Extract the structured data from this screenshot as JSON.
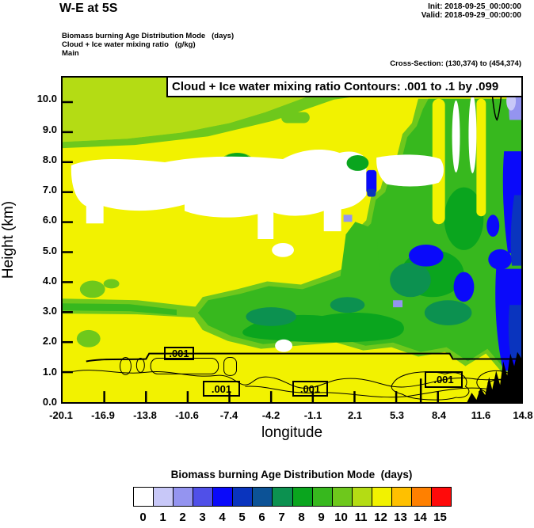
{
  "header": {
    "title": "W-E at 5S",
    "init": "Init: 2018-09-25_00:00:00",
    "valid": "Valid: 2018-09-29_00:00:00"
  },
  "field_info": {
    "line1": "Biomass burning Age Distribution Mode   (days)",
    "line2": "Cloud + Ice water mixing ratio   (g/kg)",
    "line3": "Main"
  },
  "cross_section": "Cross-Section: (130,374) to (454,374)",
  "plot": {
    "title": "Cloud + Ice water mixing ratio Contours: .001 to .1 by .099",
    "contour_label": ".001"
  },
  "axes": {
    "y_label": "Height (km)",
    "y_ticks": [
      "0.0",
      "1.0",
      "2.0",
      "3.0",
      "4.0",
      "5.0",
      "6.0",
      "7.0",
      "8.0",
      "9.0",
      "10.0"
    ],
    "x_label": "longitude",
    "x_ticks": [
      "-20.1",
      "-16.9",
      "-13.8",
      "-10.6",
      "-7.4",
      "-4.2",
      "-1.1",
      "2.1",
      "5.3",
      "8.4",
      "11.6",
      "14.8"
    ]
  },
  "legend": {
    "title": "Biomass burning Age Distribution Mode  (days)",
    "values": [
      "0",
      "1",
      "2",
      "3",
      "4",
      "5",
      "6",
      "7",
      "8",
      "9",
      "10",
      "11",
      "12",
      "13",
      "14",
      "15"
    ],
    "colors": [
      "#FFFFFF",
      "#C8C8F8",
      "#9494F0",
      "#5050E8",
      "#0A0AFA",
      "#0A34BE",
      "#0C5296",
      "#0C9150",
      "#0AA51E",
      "#37B81E",
      "#6EC81C",
      "#B4DC14",
      "#F2F200",
      "#FFC000",
      "#FF8000",
      "#FF0A0A"
    ]
  },
  "chart_data": {
    "type": "heatmap",
    "title": "Cloud + Ice water mixing ratio Contours: .001 to .1 by .099",
    "xlabel": "longitude",
    "ylabel": "Height (km)",
    "xlim": [
      -20.1,
      14.8
    ],
    "ylim": [
      0.0,
      10.8
    ],
    "x_ticks": [
      -20.1,
      -16.9,
      -13.8,
      -10.6,
      -7.4,
      -4.2,
      -1.1,
      2.1,
      5.3,
      8.4,
      11.6,
      14.8
    ],
    "y_ticks": [
      0,
      1,
      2,
      3,
      4,
      5,
      6,
      7,
      8,
      9,
      10
    ],
    "grid": false,
    "legend_position": "bottom",
    "fill_variable": "Biomass burning Age Distribution Mode (days)",
    "fill_levels": [
      0,
      1,
      2,
      3,
      4,
      5,
      6,
      7,
      8,
      9,
      10,
      11,
      12,
      13,
      14,
      15
    ],
    "contour_variable": "Cloud + Ice water mixing ratio (g/kg)",
    "contour_levels": [
      0.001,
      0.1
    ],
    "contour_label_text": ".001",
    "regions": [
      {
        "value_days": 12,
        "where": "dominant yellow background through the low and mid troposphere across the whole section"
      },
      {
        "value_days": 10,
        "where": "yellow-green band 8.5-10.8 km from lon -20.1 to about -6"
      },
      {
        "value_days": 0,
        "where": "white (age 0) cloud band 6-8.5 km from lon -20 to about 5, plus two narrow white columns near lon 9-10 at 7-9 km"
      },
      {
        "value_days": 8,
        "where": "green plume 2-4 km between lon -13 and 2"
      },
      {
        "value_days": 8,
        "where": "large green plume 2-8 km east of lon 2 rising toward the right edge"
      },
      {
        "value_days": 7,
        "where": "darker sea-green cores inside the eastern plume near 3-5 km"
      },
      {
        "value_days": 4,
        "where": "blue pockets 4-7 km between lon 5 and 14.8"
      },
      {
        "value_days": 5,
        "where": "darkest blue streaks along the eastern edge near lon 14, 3-10 km"
      },
      {
        "value_days": 2,
        "where": "pale violet sliver at the top right corner"
      }
    ],
    "annotations": [
      "four '.001' contour labels along 1-1.5 km",
      "thin cloud-water contour lines near 1-1.5 km across the section",
      "small contour notch near lon 12.5 at 10.5 km",
      "black terrain silhouette below about 1.7 km east of lon 12"
    ]
  }
}
